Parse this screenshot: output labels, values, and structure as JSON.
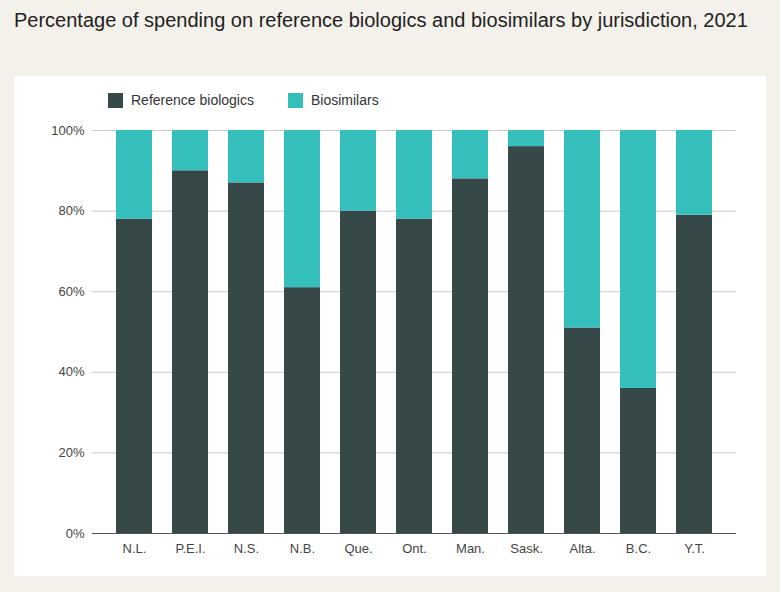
{
  "chart_data": {
    "type": "bar",
    "title": "Percentage of spending on reference biologics and biosimilars by jurisdiction, 2021",
    "categories": [
      "N.L.",
      "P.E.I.",
      "N.S.",
      "N.B.",
      "Que.",
      "Ont.",
      "Man.",
      "Sask.",
      "Alta.",
      "B.C.",
      "Y.T."
    ],
    "series": [
      {
        "name": "Reference biologics",
        "color": "#364848",
        "values": [
          78,
          90,
          87,
          61,
          80,
          78,
          88,
          96,
          51,
          36,
          79
        ]
      },
      {
        "name": "Biosimilars",
        "color": "#35bfbc",
        "values": [
          22,
          10,
          13,
          39,
          20,
          22,
          12,
          4,
          49,
          64,
          21
        ]
      }
    ],
    "stacked": true,
    "ylim": [
      0,
      100
    ],
    "yticks": [
      {
        "value": 0,
        "label": "0%"
      },
      {
        "value": 20,
        "label": "20%"
      },
      {
        "value": 40,
        "label": "40%"
      },
      {
        "value": 60,
        "label": "60%"
      },
      {
        "value": 80,
        "label": "80%"
      },
      {
        "value": 100,
        "label": "100%"
      }
    ],
    "grid": true,
    "legend": "top-left"
  }
}
